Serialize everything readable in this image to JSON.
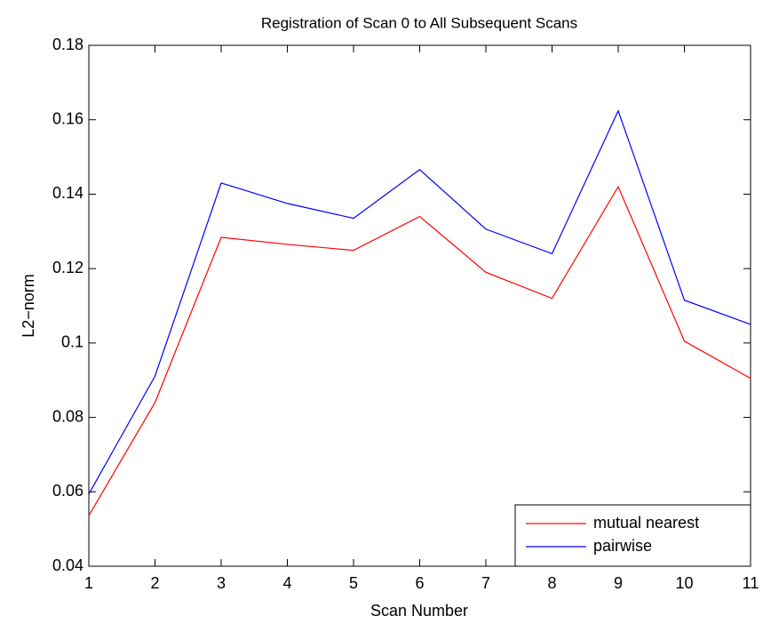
{
  "chart_data": {
    "type": "line",
    "title": "Registration of Scan 0 to All Subsequent Scans",
    "xlabel": "Scan Number",
    "ylabel": "L2−norm",
    "x": [
      1,
      2,
      3,
      4,
      5,
      6,
      7,
      8,
      9,
      10,
      11
    ],
    "series": [
      {
        "name": "mutual nearest",
        "color": "#ff0000",
        "values": [
          0.0536,
          0.084,
          0.1284,
          0.1265,
          0.1249,
          0.134,
          0.119,
          0.112,
          0.142,
          0.1005,
          0.0905
        ]
      },
      {
        "name": "pairwise",
        "color": "#0000ff",
        "values": [
          0.0594,
          0.0911,
          0.143,
          0.1375,
          0.1335,
          0.1466,
          0.1306,
          0.124,
          0.1624,
          0.1115,
          0.105
        ]
      }
    ],
    "xlim": [
      1,
      11
    ],
    "xticks": [
      1,
      2,
      3,
      4,
      5,
      6,
      7,
      8,
      9,
      10,
      11
    ],
    "ylim": [
      0.04,
      0.18
    ],
    "yticks": [
      0.04,
      0.06,
      0.08,
      0.1,
      0.12,
      0.14,
      0.16,
      0.18
    ],
    "grid": false,
    "legend": "lower right"
  }
}
